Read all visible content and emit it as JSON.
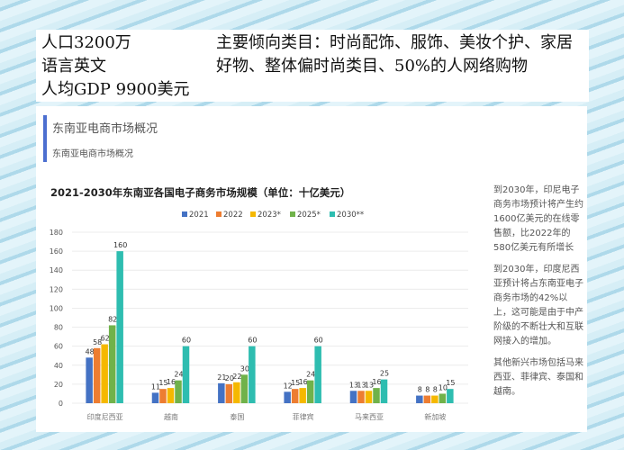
{
  "header": {
    "left_lines": [
      "人口3200万",
      "语言英文",
      "人均GDP 9900美元"
    ],
    "right_text": "主要倾向类目：时尚配饰、服饰、美妆个护、家居好物、整体偏时尚类目、50%的人网络购物"
  },
  "card": {
    "title": "东南亚电商市场概况",
    "subtitle": "东南亚电商市场概况",
    "accent": "#4c6fd0"
  },
  "side_notes": [
    "到2030年，印尼电子商务市场预计将产生约1600亿美元的在线零售额，比2022年的580亿美元有所增长",
    "到2030年，印度尼西亚预计将占东南亚电子商务市场的42%以上，这可能是由于中产阶级的不断壮大和互联网接入的增加。",
    "其他新兴市场包括马来西亚、菲律宾、泰国和越南。"
  ],
  "chart_data": {
    "type": "bar",
    "title": "2021-2030年东南亚各国电子商务市场规模（单位：十亿美元）",
    "categories": [
      "印度尼西亚",
      "越南",
      "泰国",
      "菲律宾",
      "马来西亚",
      "新加坡"
    ],
    "ylim": [
      0,
      180
    ],
    "yticks": [
      0,
      20,
      40,
      60,
      80,
      100,
      120,
      140,
      160,
      180
    ],
    "grid": true,
    "legend": "top",
    "series": [
      {
        "name": "2021",
        "color": "#4472c4",
        "values": [
          48,
          11,
          21,
          12,
          13,
          8
        ]
      },
      {
        "name": "2022",
        "color": "#ed7d31",
        "values": [
          58,
          15,
          20,
          15,
          13,
          8
        ]
      },
      {
        "name": "2023*",
        "color": "#f5b800",
        "values": [
          62,
          16,
          22,
          16,
          13,
          8
        ]
      },
      {
        "name": "2025*",
        "color": "#70b24a",
        "values": [
          82,
          24,
          30,
          24,
          16,
          10
        ]
      },
      {
        "name": "2030**",
        "color": "#2ebdb0",
        "values": [
          160,
          60,
          60,
          60,
          25,
          15
        ]
      }
    ]
  }
}
